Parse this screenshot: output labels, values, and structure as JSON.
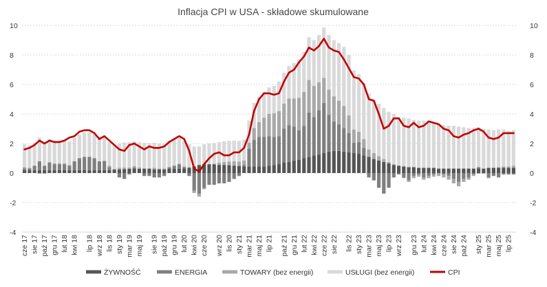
{
  "chart_data": {
    "type": "bar",
    "title": "Inflacja CPI w USA - składowe skumulowane",
    "ylim": [
      -4,
      10
    ],
    "yticks": [
      -4,
      -2,
      0,
      2,
      4,
      6,
      8,
      10
    ],
    "grid": "horizontal dashed",
    "legend_position": "bottom",
    "x": [
      "cze 17",
      "lip 17",
      "sie 17",
      "wrz 17",
      "paź 17",
      "lis 17",
      "gru 17",
      "sty 18",
      "lut 18",
      "mar 18",
      "kwi 18",
      "maj 18",
      "cze 18",
      "lip 18",
      "sie 18",
      "wrz 18",
      "paź 18",
      "lis 18",
      "gru 18",
      "sty 19",
      "lut 19",
      "mar 19",
      "kwi 19",
      "maj 19",
      "cze 19",
      "lip 19",
      "sie 19",
      "wrz 19",
      "paź 19",
      "lis 19",
      "gru 19",
      "sty 20",
      "lut 20",
      "mar 20",
      "kwi 20",
      "maj 20",
      "cze 20",
      "lip 20",
      "sie 20",
      "wrz 20",
      "paź 20",
      "lis 20",
      "gru 20",
      "sty 21",
      "lut 21",
      "mar 21",
      "kwi 21",
      "maj 21",
      "cze 21",
      "lip 21",
      "sie 21",
      "wrz 21",
      "paź 21",
      "lis 21",
      "gru 21",
      "sty 22",
      "lut 22",
      "mar 22",
      "kwi 22",
      "maj 22",
      "cze 22",
      "lip 22",
      "sie 22",
      "wrz 22",
      "paź 22",
      "lis 22",
      "gru 22",
      "sty 23",
      "lut 23",
      "mar 23",
      "kwi 23",
      "maj 23",
      "cze 23",
      "lip 23",
      "sie 23",
      "wrz 23",
      "paź 23",
      "lis 23",
      "gru 23",
      "sty 24",
      "lut 24",
      "mar 24",
      "kwi 24",
      "maj 24",
      "cze 24",
      "lip 24",
      "sie 24",
      "wrz 24",
      "paź 24",
      "lis 24",
      "gru 24",
      "sty 25",
      "lut 25",
      "mar 25",
      "kwi 25",
      "maj 25",
      "cze 25",
      "lip 25",
      "sie 25"
    ],
    "xtick_labels": [
      "cze 17",
      "sie 17",
      "paź 17",
      "gru 17",
      "lut 18",
      "kwi 18",
      "lip 18",
      "wrz 18",
      "lis 18",
      "sty 19",
      "mar 19",
      "maj 19",
      "sie 19",
      "paź 19",
      "gru 19",
      "lut 20",
      "kwi 20",
      "cze 20",
      "wrz 20",
      "lis 20",
      "sty 21",
      "mar 21",
      "maj 21",
      "lip 21",
      "paź 21",
      "gru 21",
      "lut 22",
      "kwi 22",
      "cze 22",
      "sie 22",
      "lis 22",
      "sty 23",
      "mar 23",
      "maj 23",
      "lip 23",
      "wrz 23",
      "gru 23",
      "lut 24",
      "kwi 24",
      "cze 24",
      "sie 24",
      "paź 24",
      "sty 25",
      "mar 25",
      "maj 25",
      "lip 25"
    ],
    "series": [
      {
        "name": "ŻYWNOŚĆ",
        "kind": "bar",
        "color": "#555555",
        "values": [
          0.2,
          0.2,
          0.2,
          0.2,
          0.2,
          0.2,
          0.2,
          0.2,
          0.2,
          0.2,
          0.2,
          0.2,
          0.2,
          0.2,
          0.2,
          0.2,
          0.2,
          0.2,
          0.23,
          0.25,
          0.27,
          0.28,
          0.28,
          0.28,
          0.28,
          0.28,
          0.25,
          0.25,
          0.25,
          0.28,
          0.28,
          0.28,
          0.3,
          0.35,
          0.45,
          0.55,
          0.6,
          0.6,
          0.58,
          0.55,
          0.55,
          0.53,
          0.5,
          0.48,
          0.45,
          0.45,
          0.45,
          0.45,
          0.45,
          0.5,
          0.55,
          0.6,
          0.7,
          0.75,
          0.85,
          0.9,
          1.0,
          1.1,
          1.2,
          1.25,
          1.35,
          1.45,
          1.5,
          1.5,
          1.45,
          1.4,
          1.35,
          1.3,
          1.2,
          1.1,
          0.95,
          0.85,
          0.75,
          0.65,
          0.55,
          0.5,
          0.45,
          0.4,
          0.4,
          0.35,
          0.35,
          0.35,
          0.35,
          0.3,
          0.3,
          0.3,
          0.3,
          0.3,
          0.3,
          0.3,
          0.3,
          0.3,
          0.3,
          0.35,
          0.35,
          0.35,
          0.35,
          0.35,
          0.35
        ]
      },
      {
        "name": "ENERGIA",
        "kind": "bar",
        "color": "#7f7f7f",
        "values": [
          0.1,
          0.1,
          0.3,
          0.6,
          0.3,
          0.5,
          0.4,
          0.4,
          0.4,
          0.3,
          0.6,
          0.8,
          0.9,
          0.9,
          0.8,
          0.6,
          0.6,
          0.2,
          0.0,
          -0.3,
          -0.4,
          -0.1,
          0.1,
          0.0,
          -0.2,
          -0.2,
          -0.3,
          -0.3,
          -0.2,
          0.1,
          0.2,
          0.3,
          0.1,
          -0.2,
          -1.2,
          -1.4,
          -1.0,
          -0.8,
          -0.8,
          -0.7,
          -0.7,
          -0.6,
          -0.4,
          -0.2,
          0.1,
          1.2,
          1.8,
          2.0,
          2.0,
          2.0,
          1.9,
          1.9,
          2.3,
          2.5,
          2.3,
          2.0,
          2.2,
          3.0,
          2.6,
          3.0,
          3.4,
          2.5,
          2.0,
          1.8,
          1.6,
          1.3,
          0.7,
          0.8,
          0.5,
          -0.3,
          -0.5,
          -1.0,
          -1.4,
          -1.0,
          -0.3,
          -0.1,
          -0.3,
          -0.5,
          -0.2,
          -0.1,
          -0.3,
          -0.2,
          -0.1,
          0.0,
          -0.1,
          -0.2,
          -0.4,
          -0.6,
          -0.4,
          -0.3,
          -0.1,
          0.1,
          0.0,
          -0.3,
          -0.2,
          -0.3,
          -0.1,
          -0.1,
          -0.1
        ]
      },
      {
        "name": "TOWARY (bez energii)",
        "kind": "bar",
        "color": "#a8a8a8",
        "values": [
          0.1,
          0.05,
          0.0,
          -0.05,
          -0.05,
          0.05,
          0.05,
          0.05,
          0.05,
          0.05,
          0.0,
          0.0,
          0.0,
          0.0,
          0.0,
          0.0,
          0.05,
          0.1,
          0.05,
          0.1,
          0.1,
          0.1,
          0.1,
          0.1,
          0.05,
          0.05,
          0.1,
          0.05,
          0.05,
          0.05,
          0.05,
          0.05,
          0.05,
          0.05,
          -0.15,
          -0.2,
          -0.1,
          0.0,
          0.05,
          0.15,
          0.2,
          0.25,
          0.3,
          0.3,
          0.3,
          0.4,
          0.8,
          1.0,
          1.3,
          1.5,
          1.6,
          1.7,
          1.7,
          1.8,
          1.9,
          2.2,
          2.3,
          2.2,
          2.1,
          1.9,
          1.7,
          1.7,
          1.7,
          1.6,
          1.5,
          1.2,
          0.9,
          0.7,
          0.6,
          0.5,
          0.4,
          0.3,
          0.2,
          0.1,
          0.05,
          0.0,
          -0.05,
          -0.1,
          -0.15,
          -0.15,
          -0.15,
          -0.15,
          -0.15,
          -0.2,
          -0.2,
          -0.25,
          -0.3,
          -0.3,
          -0.2,
          -0.15,
          -0.1,
          -0.05,
          -0.05,
          -0.05,
          0.0,
          0.05,
          0.1,
          0.1,
          0.15
        ]
      },
      {
        "name": "USŁUGI (bez energii)",
        "kind": "bar",
        "color": "#d9d9d9",
        "values": [
          1.55,
          1.55,
          1.55,
          1.6,
          1.6,
          1.55,
          1.55,
          1.55,
          1.6,
          1.6,
          1.6,
          1.6,
          1.65,
          1.65,
          1.65,
          1.65,
          1.6,
          1.6,
          1.65,
          1.65,
          1.7,
          1.7,
          1.65,
          1.7,
          1.7,
          1.7,
          1.7,
          1.7,
          1.7,
          1.75,
          1.75,
          1.75,
          1.75,
          1.55,
          1.35,
          1.25,
          1.35,
          1.4,
          1.4,
          1.4,
          1.4,
          1.4,
          1.4,
          1.4,
          1.4,
          1.5,
          1.7,
          1.7,
          1.75,
          1.8,
          1.85,
          2.0,
          2.1,
          2.2,
          2.4,
          2.6,
          2.7,
          2.9,
          3.1,
          3.2,
          3.4,
          3.7,
          3.8,
          3.9,
          4.0,
          4.1,
          4.0,
          3.9,
          3.8,
          3.8,
          3.6,
          3.55,
          3.45,
          3.4,
          3.4,
          3.3,
          3.3,
          3.3,
          3.2,
          3.2,
          3.2,
          3.2,
          3.1,
          3.0,
          2.95,
          2.9,
          2.9,
          2.85,
          2.8,
          2.75,
          2.75,
          2.7,
          2.7,
          2.6,
          2.55,
          2.55,
          2.5,
          2.4,
          2.4
        ]
      },
      {
        "name": "CPI",
        "kind": "line",
        "color": "#c00000",
        "values": [
          1.6,
          1.7,
          1.9,
          2.2,
          2.0,
          2.2,
          2.1,
          2.1,
          2.2,
          2.4,
          2.5,
          2.8,
          2.9,
          2.9,
          2.7,
          2.3,
          2.5,
          2.2,
          1.9,
          1.6,
          1.5,
          1.9,
          2.0,
          1.8,
          1.6,
          1.8,
          1.7,
          1.7,
          1.8,
          2.1,
          2.3,
          2.5,
          2.3,
          1.5,
          0.3,
          0.1,
          0.6,
          1.0,
          1.3,
          1.4,
          1.2,
          1.2,
          1.4,
          1.4,
          1.7,
          2.6,
          4.2,
          5.0,
          5.4,
          5.4,
          5.3,
          5.4,
          6.2,
          6.8,
          7.0,
          7.5,
          7.9,
          8.5,
          8.3,
          8.6,
          9.1,
          8.5,
          8.3,
          8.2,
          7.7,
          7.1,
          6.5,
          6.4,
          6.0,
          5.0,
          4.9,
          4.0,
          3.0,
          3.2,
          3.7,
          3.7,
          3.2,
          3.1,
          3.4,
          3.1,
          3.2,
          3.5,
          3.4,
          3.3,
          3.0,
          2.9,
          2.5,
          2.4,
          2.6,
          2.7,
          2.9,
          3.0,
          2.8,
          2.4,
          2.3,
          2.4,
          2.7,
          2.7,
          2.7
        ]
      }
    ]
  }
}
